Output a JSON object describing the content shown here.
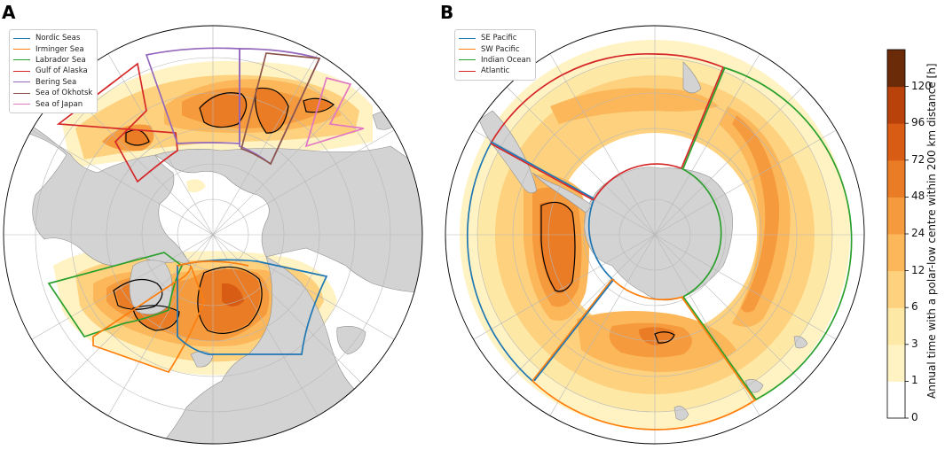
{
  "panels": [
    {
      "id": "A",
      "label": "A",
      "legend": [
        {
          "name": "Nordic Seas",
          "color": "#1f77b4"
        },
        {
          "name": "Irminger Sea",
          "color": "#ff7f0e"
        },
        {
          "name": "Labrador Sea",
          "color": "#2ca02c"
        },
        {
          "name": "Gulf of Alaska",
          "color": "#d62728"
        },
        {
          "name": "Bering Sea",
          "color": "#9467bd"
        },
        {
          "name": "Sea of Okhotsk",
          "color": "#8c564b"
        },
        {
          "name": "Sea of Japan",
          "color": "#e377c2"
        }
      ]
    },
    {
      "id": "B",
      "label": "B",
      "legend": [
        {
          "name": "SE Pacific",
          "color": "#1f77b4"
        },
        {
          "name": "SW Pacific",
          "color": "#ff7f0e"
        },
        {
          "name": "Indian Ocean",
          "color": "#2ca02c"
        },
        {
          "name": "Atlantic",
          "color": "#d62728"
        }
      ]
    }
  ],
  "colorbar": {
    "label": "Annual time with a polar-low centre within 200 km distance [h]",
    "ticks": [
      "0",
      "1",
      "3",
      "6",
      "12",
      "24",
      "48",
      "72",
      "96",
      "120"
    ],
    "colors": [
      "#ffffff",
      "#fff3c4",
      "#fde8a6",
      "#fdd17e",
      "#fbb75a",
      "#f59a3d",
      "#ea7c26",
      "#d95c14",
      "#b8420a",
      "#6b2a08"
    ]
  },
  "map_colors": {
    "land": "#d3d3d3",
    "coast": "#8f8f8f",
    "grid": "#b8b8b8",
    "contour": "#000000"
  }
}
